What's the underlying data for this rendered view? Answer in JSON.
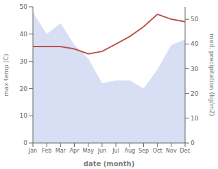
{
  "chart_data": {
    "type": "combo",
    "categories": [
      "Jan",
      "Feb",
      "Mar",
      "Apr",
      "May",
      "Jun",
      "Jul",
      "Aug",
      "Sep",
      "Oct",
      "Nov",
      "Dec"
    ],
    "xlabel": "date (month)",
    "ylabel": "max temp (C)",
    "y2label": "med. precipitation (kg/m2)",
    "ylim": [
      0,
      50
    ],
    "yticks": [
      0,
      10,
      20,
      30,
      40,
      50
    ],
    "y2lim": [
      0,
      55
    ],
    "y2ticks": [
      0,
      10,
      20,
      30,
      40,
      50
    ],
    "grid": false,
    "series": [
      {
        "type": "area",
        "color": "#c8d0f0",
        "values": [
          48,
          40,
          44,
          36,
          31,
          22,
          23,
          23,
          20,
          27,
          36,
          38
        ]
      },
      {
        "type": "line",
        "axis": "y2",
        "color": "#c0504d",
        "values": [
          39,
          39,
          39,
          38,
          36,
          37,
          40,
          43,
          47,
          52,
          50,
          49
        ]
      }
    ]
  }
}
